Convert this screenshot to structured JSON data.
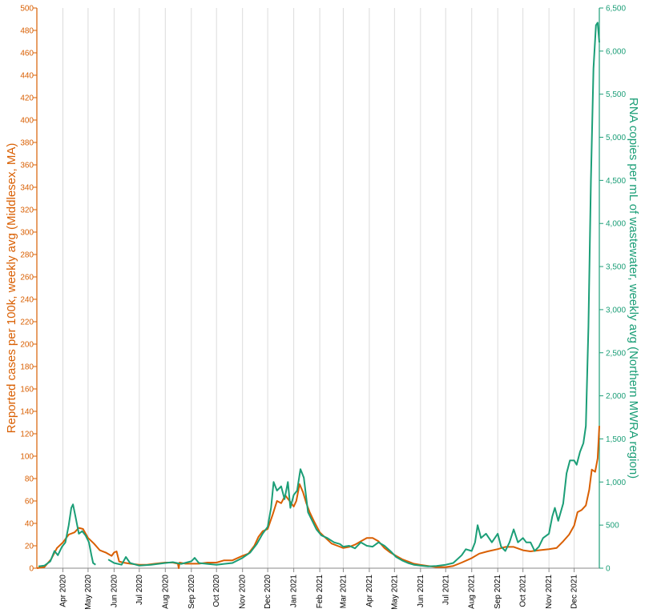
{
  "chart_data": {
    "type": "line",
    "x_axis": {
      "type": "date",
      "range": [
        "2020-03-01",
        "2021-12-31"
      ],
      "ticks": [
        "2020-04-01",
        "2020-05-01",
        "2020-06-01",
        "2020-07-01",
        "2020-08-01",
        "2020-09-01",
        "2020-10-01",
        "2020-11-01",
        "2020-12-01",
        "2021-01-01",
        "2021-02-01",
        "2021-03-01",
        "2021-04-01",
        "2021-05-01",
        "2021-06-01",
        "2021-07-01",
        "2021-08-01",
        "2021-09-01",
        "2021-10-01",
        "2021-11-01",
        "2021-12-01"
      ],
      "tick_labels": [
        "Apr 2020",
        "May 2020",
        "Jun 2020",
        "Jul 2020",
        "Aug 2020",
        "Sep 2020",
        "Oct 2020",
        "Nov 2020",
        "Dec 2020",
        "Jan 2021",
        "Feb 2021",
        "Mar 2021",
        "Apr 2021",
        "May 2021",
        "Jun 2021",
        "Jul 2021",
        "Aug 2021",
        "Sep 2021",
        "Oct 2021",
        "Nov 2021",
        "Dec 2021"
      ],
      "grid": true
    },
    "y_left": {
      "label": "Reported cases per 100k, weekly avg (Middlesex, MA)",
      "range": [
        0,
        500
      ],
      "ticks": [
        0,
        20,
        40,
        60,
        80,
        100,
        120,
        140,
        160,
        180,
        200,
        220,
        240,
        260,
        280,
        300,
        320,
        340,
        360,
        380,
        400,
        420,
        440,
        460,
        480,
        500
      ],
      "tick_labels": [
        "0",
        "20",
        "40",
        "60",
        "80",
        "100",
        "120",
        "140",
        "160",
        "180",
        "200",
        "220",
        "240",
        "260",
        "280",
        "300",
        "320",
        "340",
        "360",
        "380",
        "400",
        "420",
        "440",
        "460",
        "480",
        "500"
      ],
      "color": "#d95f02"
    },
    "y_right": {
      "label": "RNA copies per mL of wastewater, weekly avg (Northern MWRA region)",
      "range": [
        0,
        6500
      ],
      "ticks": [
        0,
        500,
        1000,
        1500,
        2000,
        2500,
        3000,
        3500,
        4000,
        4500,
        5000,
        5500,
        6000,
        6500
      ],
      "tick_labels": [
        "0",
        "500",
        "1,000",
        "1,500",
        "2,000",
        "2,500",
        "3,000",
        "3,500",
        "4,000",
        "4,500",
        "5,000",
        "5,500",
        "6,000",
        "6,500"
      ],
      "color": "#1b9e77"
    },
    "series": [
      {
        "axis": "left",
        "color": "#d95f02",
        "points": [
          [
            "2020-03-01",
            0
          ],
          [
            "2020-03-10",
            1
          ],
          [
            "2020-03-18",
            8
          ],
          [
            "2020-03-25",
            18
          ],
          [
            "2020-04-01",
            23
          ],
          [
            "2020-04-08",
            30
          ],
          [
            "2020-04-15",
            32
          ],
          [
            "2020-04-20",
            36
          ],
          [
            "2020-04-25",
            35
          ],
          [
            "2020-05-01",
            27
          ],
          [
            "2020-05-08",
            22
          ],
          [
            "2020-05-15",
            16
          ],
          [
            "2020-05-22",
            14
          ],
          [
            "2020-05-29",
            11
          ],
          [
            "2020-06-01",
            14
          ],
          [
            "2020-06-04",
            15
          ],
          [
            "2020-06-07",
            6
          ],
          [
            "2020-06-12",
            5
          ],
          [
            "2020-06-20",
            4
          ],
          [
            "2020-07-01",
            3
          ],
          [
            "2020-07-10",
            3
          ],
          [
            "2020-07-20",
            4
          ],
          [
            "2020-08-01",
            5
          ],
          [
            "2020-08-10",
            5
          ],
          [
            "2020-08-16",
            4
          ],
          [
            "2020-08-17",
            0
          ],
          [
            "2020-08-18",
            5
          ],
          [
            "2020-08-25",
            4
          ],
          [
            "2020-09-01",
            4
          ],
          [
            "2020-09-10",
            4
          ],
          [
            "2020-09-20",
            5
          ],
          [
            "2020-10-01",
            5
          ],
          [
            "2020-10-10",
            7
          ],
          [
            "2020-10-20",
            7
          ],
          [
            "2020-11-01",
            11
          ],
          [
            "2020-11-08",
            13
          ],
          [
            "2020-11-15",
            20
          ],
          [
            "2020-11-20",
            28
          ],
          [
            "2020-11-25",
            33
          ],
          [
            "2020-12-01",
            35
          ],
          [
            "2020-12-07",
            48
          ],
          [
            "2020-12-12",
            60
          ],
          [
            "2020-12-17",
            58
          ],
          [
            "2020-12-22",
            65
          ],
          [
            "2020-12-27",
            60
          ],
          [
            "2021-01-01",
            55
          ],
          [
            "2021-01-04",
            60
          ],
          [
            "2021-01-08",
            75
          ],
          [
            "2021-01-12",
            68
          ],
          [
            "2021-01-16",
            58
          ],
          [
            "2021-01-20",
            50
          ],
          [
            "2021-01-25",
            42
          ],
          [
            "2021-02-01",
            32
          ],
          [
            "2021-02-08",
            27
          ],
          [
            "2021-02-15",
            22
          ],
          [
            "2021-02-22",
            20
          ],
          [
            "2021-03-01",
            18
          ],
          [
            "2021-03-08",
            19
          ],
          [
            "2021-03-15",
            21
          ],
          [
            "2021-03-22",
            24
          ],
          [
            "2021-03-29",
            27
          ],
          [
            "2021-04-05",
            27
          ],
          [
            "2021-04-12",
            24
          ],
          [
            "2021-04-19",
            18
          ],
          [
            "2021-04-26",
            14
          ],
          [
            "2021-05-03",
            11
          ],
          [
            "2021-05-10",
            8
          ],
          [
            "2021-05-17",
            6
          ],
          [
            "2021-05-24",
            4
          ],
          [
            "2021-06-01",
            3
          ],
          [
            "2021-06-10",
            2
          ],
          [
            "2021-06-20",
            1
          ],
          [
            "2021-07-01",
            1
          ],
          [
            "2021-07-10",
            2
          ],
          [
            "2021-07-20",
            5
          ],
          [
            "2021-08-01",
            9
          ],
          [
            "2021-08-10",
            13
          ],
          [
            "2021-08-20",
            15
          ],
          [
            "2021-09-01",
            17
          ],
          [
            "2021-09-10",
            19
          ],
          [
            "2021-09-20",
            19
          ],
          [
            "2021-10-01",
            16
          ],
          [
            "2021-10-10",
            15
          ],
          [
            "2021-10-20",
            16
          ],
          [
            "2021-11-01",
            17
          ],
          [
            "2021-11-10",
            18
          ],
          [
            "2021-11-18",
            24
          ],
          [
            "2021-11-25",
            30
          ],
          [
            "2021-12-01",
            38
          ],
          [
            "2021-12-05",
            50
          ],
          [
            "2021-12-10",
            52
          ],
          [
            "2021-12-15",
            56
          ],
          [
            "2021-12-19",
            70
          ],
          [
            "2021-12-22",
            88
          ],
          [
            "2021-12-26",
            86
          ],
          [
            "2021-12-29",
            98
          ],
          [
            "2021-12-31",
            127
          ]
        ]
      },
      {
        "axis": "right",
        "color": "#1b9e77",
        "points": [
          [
            "2020-03-03",
            20
          ],
          [
            "2020-03-10",
            30
          ],
          [
            "2020-03-17",
            80
          ],
          [
            "2020-03-22",
            200
          ],
          [
            "2020-03-26",
            150
          ],
          [
            "2020-03-31",
            250
          ],
          [
            "2020-04-04",
            300
          ],
          [
            "2020-04-08",
            500
          ],
          [
            "2020-04-11",
            700
          ],
          [
            "2020-04-13",
            740
          ],
          [
            "2020-04-16",
            600
          ],
          [
            "2020-04-20",
            400
          ],
          [
            "2020-04-24",
            430
          ],
          [
            "2020-04-28",
            380
          ],
          [
            "2020-05-02",
            300
          ],
          [
            "2020-05-05",
            150
          ],
          [
            "2020-05-07",
            60
          ],
          [
            "2020-05-10",
            40
          ],
          [
            null,
            null
          ],
          [
            "2020-05-25",
            100
          ],
          [
            "2020-06-01",
            60
          ],
          [
            "2020-06-10",
            40
          ],
          [
            "2020-06-15",
            130
          ],
          [
            "2020-06-20",
            60
          ],
          [
            "2020-07-01",
            30
          ],
          [
            "2020-07-15",
            40
          ],
          [
            "2020-08-01",
            60
          ],
          [
            "2020-08-10",
            70
          ],
          [
            "2020-08-20",
            50
          ],
          [
            "2020-09-01",
            80
          ],
          [
            "2020-09-05",
            120
          ],
          [
            "2020-09-10",
            60
          ],
          [
            "2020-09-20",
            50
          ],
          [
            "2020-10-01",
            40
          ],
          [
            "2020-10-10",
            50
          ],
          [
            "2020-10-20",
            60
          ],
          [
            "2020-11-01",
            120
          ],
          [
            "2020-11-10",
            180
          ],
          [
            "2020-11-18",
            280
          ],
          [
            "2020-11-25",
            400
          ],
          [
            "2020-12-01",
            480
          ],
          [
            "2020-12-05",
            700
          ],
          [
            "2020-12-08",
            1000
          ],
          [
            "2020-12-12",
            900
          ],
          [
            "2020-12-17",
            950
          ],
          [
            "2020-12-21",
            800
          ],
          [
            "2020-12-25",
            1000
          ],
          [
            "2020-12-28",
            700
          ],
          [
            "2021-01-01",
            850
          ],
          [
            "2021-01-05",
            900
          ],
          [
            "2021-01-09",
            1150
          ],
          [
            "2021-01-13",
            1050
          ],
          [
            "2021-01-18",
            650
          ],
          [
            "2021-01-23",
            550
          ],
          [
            "2021-01-28",
            450
          ],
          [
            "2021-02-03",
            380
          ],
          [
            "2021-02-10",
            350
          ],
          [
            "2021-02-18",
            300
          ],
          [
            "2021-02-25",
            280
          ],
          [
            "2021-03-01",
            250
          ],
          [
            "2021-03-08",
            260
          ],
          [
            "2021-03-15",
            230
          ],
          [
            "2021-03-22",
            300
          ],
          [
            "2021-03-29",
            260
          ],
          [
            "2021-04-05",
            250
          ],
          [
            "2021-04-12",
            300
          ],
          [
            "2021-04-19",
            260
          ],
          [
            "2021-04-26",
            200
          ],
          [
            "2021-05-03",
            130
          ],
          [
            "2021-05-10",
            90
          ],
          [
            "2021-05-17",
            60
          ],
          [
            "2021-05-24",
            40
          ],
          [
            "2021-06-01",
            30
          ],
          [
            "2021-06-10",
            20
          ],
          [
            "2021-06-20",
            25
          ],
          [
            "2021-07-01",
            40
          ],
          [
            "2021-07-10",
            60
          ],
          [
            "2021-07-20",
            150
          ],
          [
            "2021-07-25",
            220
          ],
          [
            "2021-08-01",
            200
          ],
          [
            "2021-08-05",
            300
          ],
          [
            "2021-08-08",
            500
          ],
          [
            "2021-08-12",
            350
          ],
          [
            "2021-08-18",
            400
          ],
          [
            "2021-08-25",
            300
          ],
          [
            "2021-09-01",
            400
          ],
          [
            "2021-09-05",
            250
          ],
          [
            "2021-09-10",
            200
          ],
          [
            "2021-09-15",
            300
          ],
          [
            "2021-09-20",
            450
          ],
          [
            "2021-09-25",
            300
          ],
          [
            "2021-10-01",
            350
          ],
          [
            "2021-10-05",
            300
          ],
          [
            "2021-10-10",
            300
          ],
          [
            "2021-10-15",
            200
          ],
          [
            "2021-10-20",
            250
          ],
          [
            "2021-10-25",
            350
          ],
          [
            "2021-11-01",
            400
          ],
          [
            "2021-11-05",
            600
          ],
          [
            "2021-11-08",
            700
          ],
          [
            "2021-11-12",
            550
          ],
          [
            "2021-11-18",
            750
          ],
          [
            "2021-11-22",
            1100
          ],
          [
            "2021-11-26",
            1250
          ],
          [
            "2021-12-01",
            1250
          ],
          [
            "2021-12-04",
            1200
          ],
          [
            "2021-12-08",
            1350
          ],
          [
            "2021-12-12",
            1450
          ],
          [
            "2021-12-15",
            1650
          ],
          [
            "2021-12-18",
            2800
          ],
          [
            "2021-12-21",
            4500
          ],
          [
            "2021-12-24",
            5800
          ],
          [
            "2021-12-27",
            6300
          ],
          [
            "2021-12-29",
            6330
          ],
          [
            "2021-12-31",
            6100
          ]
        ]
      }
    ]
  }
}
